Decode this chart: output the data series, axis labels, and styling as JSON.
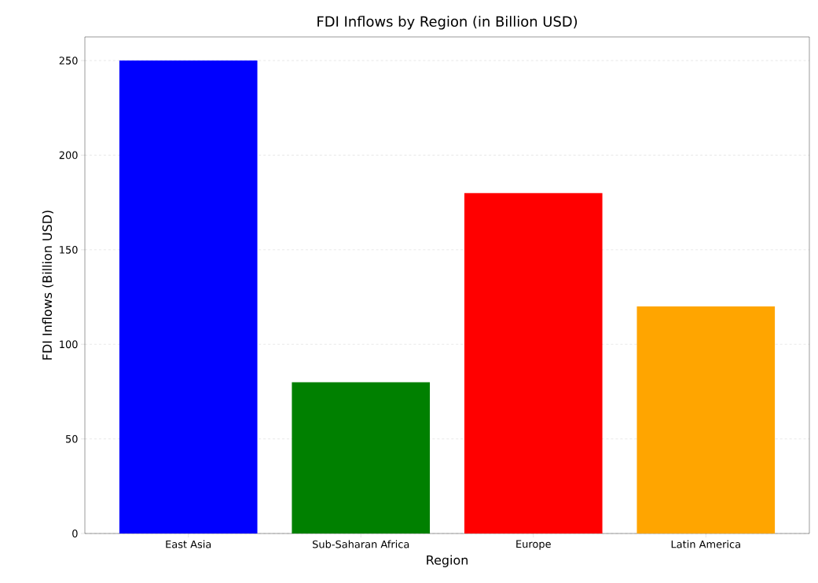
{
  "chart_data": {
    "type": "bar",
    "title": "FDI Inflows by Region (in Billion USD)",
    "xlabel": "Region",
    "ylabel": "FDI Inflows (Billion USD)",
    "categories": [
      "East Asia",
      "Sub-Saharan Africa",
      "Europe",
      "Latin America"
    ],
    "values": [
      250,
      80,
      180,
      120
    ],
    "colors": [
      "#0000ff",
      "#008000",
      "#ff0000",
      "#ffa500"
    ],
    "ylim": [
      0,
      262.5
    ],
    "yticks": [
      0,
      50,
      100,
      150,
      200,
      250
    ],
    "grid": "y"
  }
}
